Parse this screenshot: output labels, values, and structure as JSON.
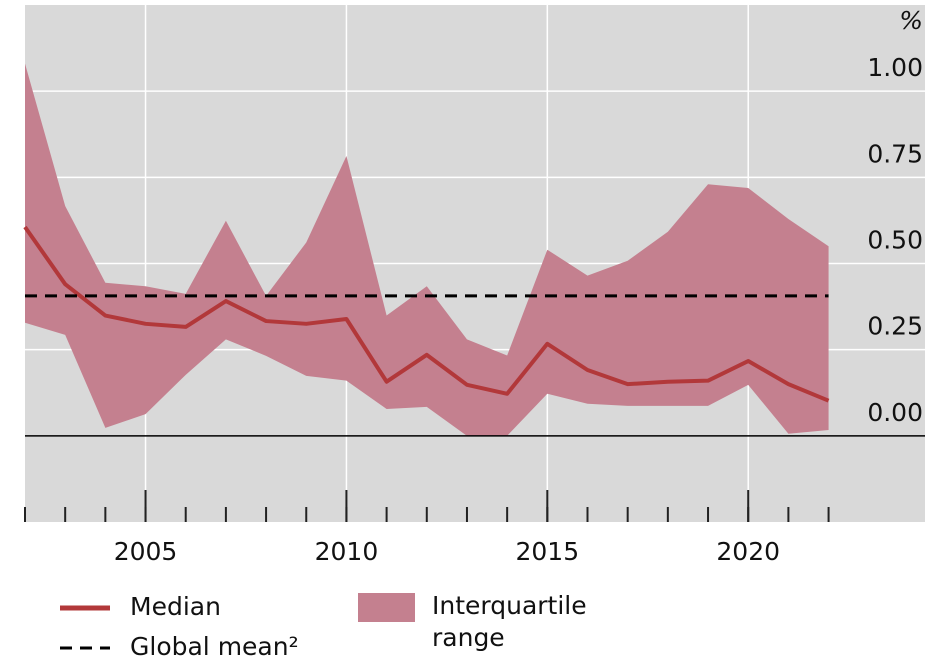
{
  "chart_data": {
    "type": "line",
    "unit_label": "%",
    "x": [
      2002,
      2003,
      2004,
      2005,
      2006,
      2007,
      2008,
      2009,
      2010,
      2011,
      2012,
      2013,
      2014,
      2015,
      2016,
      2017,
      2018,
      2019,
      2020,
      2021,
      2022
    ],
    "series": [
      {
        "name": "Median",
        "color": "#b2383a",
        "values": [
          0.606,
          0.44,
          0.349,
          0.325,
          0.316,
          0.391,
          0.333,
          0.325,
          0.339,
          0.157,
          0.235,
          0.148,
          0.122,
          0.267,
          0.191,
          0.15,
          0.157,
          0.16,
          0.217,
          0.15,
          0.102
        ]
      },
      {
        "name": "Global mean²",
        "color": "#000000",
        "dashed": true,
        "value": 0.406
      }
    ],
    "band": {
      "name": "Interquartile range",
      "color": "#c4808f",
      "upper": [
        1.08,
        0.667,
        0.444,
        0.434,
        0.412,
        0.624,
        0.406,
        0.561,
        0.812,
        0.349,
        0.434,
        0.28,
        0.233,
        0.54,
        0.465,
        0.508,
        0.592,
        0.73,
        0.719,
        0.629,
        0.55
      ],
      "lower": [
        0.328,
        0.293,
        0.023,
        0.063,
        0.177,
        0.28,
        0.232,
        0.174,
        0.16,
        0.078,
        0.084,
        0,
        0,
        0.122,
        0.093,
        0.087,
        0.087,
        0.087,
        0.148,
        0.006,
        0.017
      ]
    },
    "xlim": [
      2002,
      2024.4
    ],
    "xticks": [
      2005,
      2010,
      2015,
      2020
    ],
    "xminor_ticks": [
      2002,
      2003,
      2004,
      2005,
      2006,
      2007,
      2008,
      2009,
      2010,
      2011,
      2012,
      2013,
      2014,
      2015,
      2016,
      2017,
      2018,
      2019,
      2020,
      2021,
      2022
    ],
    "ylim": [
      -0.25,
      1.25
    ],
    "yticks": [
      {
        "value": 0,
        "label": "0.00"
      },
      {
        "value": 0.25,
        "label": "0.25"
      },
      {
        "value": 0.5,
        "label": "0.50"
      },
      {
        "value": 0.75,
        "label": "0.75"
      },
      {
        "value": 1,
        "label": "1.00"
      }
    ],
    "grid": true
  }
}
